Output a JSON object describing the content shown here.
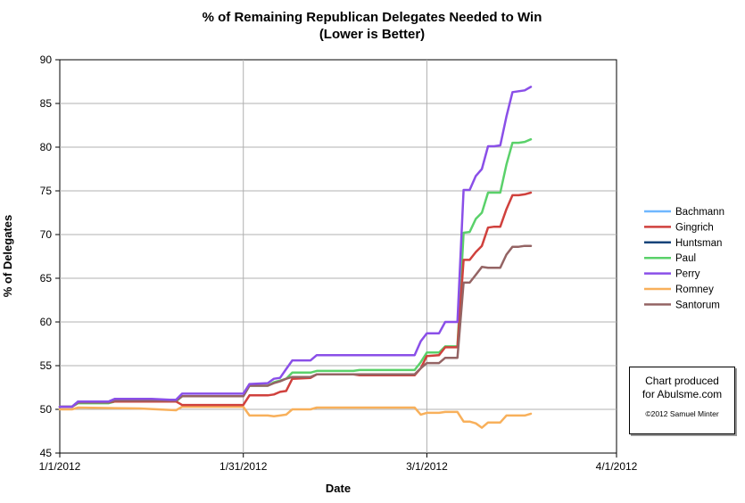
{
  "chart_data": {
    "type": "line",
    "title": "% of Remaining Republican Delegates Needed to Win",
    "subtitle": "(Lower is Better)",
    "xlabel": "Date",
    "ylabel": "% of Delegates",
    "xlim": [
      "2012-01-01",
      "2012-04-01"
    ],
    "ylim": [
      45,
      90
    ],
    "yticks": [
      45,
      50,
      55,
      60,
      65,
      70,
      75,
      80,
      85,
      90
    ],
    "xticks": [
      {
        "date": "2012-01-01",
        "label": "1/1/2012"
      },
      {
        "date": "2012-01-31",
        "label": "1/31/2012"
      },
      {
        "date": "2012-03-01",
        "label": "3/1/2012"
      },
      {
        "date": "2012-04-01",
        "label": "4/1/2012"
      }
    ],
    "grid": true,
    "legend_position": "right",
    "series": [
      {
        "name": "Bachmann",
        "color": "#6fb7ff",
        "points": [
          [
            "2012-01-01",
            50.3
          ],
          [
            "2012-01-03",
            50.3
          ],
          [
            "2012-01-04",
            50.9
          ],
          [
            "2012-01-05",
            50.9
          ]
        ]
      },
      {
        "name": "Gingrich",
        "color": "#d0413d",
        "points": [
          [
            "2012-01-01",
            50.3
          ],
          [
            "2012-01-03",
            50.3
          ],
          [
            "2012-01-04",
            50.8
          ],
          [
            "2012-01-09",
            50.8
          ],
          [
            "2012-01-10",
            50.9
          ],
          [
            "2012-01-20",
            50.9
          ],
          [
            "2012-01-21",
            50.5
          ],
          [
            "2012-01-31",
            50.5
          ],
          [
            "2012-02-01",
            51.6
          ],
          [
            "2012-02-04",
            51.6
          ],
          [
            "2012-02-05",
            51.7
          ],
          [
            "2012-02-06",
            52.0
          ],
          [
            "2012-02-07",
            52.1
          ],
          [
            "2012-02-08",
            53.5
          ],
          [
            "2012-02-11",
            53.6
          ],
          [
            "2012-02-12",
            54.0
          ],
          [
            "2012-02-18",
            54.0
          ],
          [
            "2012-02-19",
            53.9
          ],
          [
            "2012-02-28",
            53.9
          ],
          [
            "2012-02-29",
            54.7
          ],
          [
            "2012-03-01",
            56.1
          ],
          [
            "2012-03-03",
            56.2
          ],
          [
            "2012-03-04",
            57.1
          ],
          [
            "2012-03-06",
            57.1
          ],
          [
            "2012-03-07",
            67.1
          ],
          [
            "2012-03-08",
            67.1
          ],
          [
            "2012-03-09",
            68.0
          ],
          [
            "2012-03-10",
            68.7
          ],
          [
            "2012-03-11",
            70.8
          ],
          [
            "2012-03-12",
            70.9
          ],
          [
            "2012-03-13",
            70.9
          ],
          [
            "2012-03-14",
            72.9
          ],
          [
            "2012-03-15",
            74.5
          ],
          [
            "2012-03-16",
            74.5
          ],
          [
            "2012-03-17",
            74.6
          ],
          [
            "2012-03-18",
            74.8
          ]
        ]
      },
      {
        "name": "Huntsman",
        "color": "#17447a",
        "points": [
          [
            "2012-01-01",
            50.3
          ],
          [
            "2012-01-03",
            50.3
          ],
          [
            "2012-01-04",
            50.9
          ],
          [
            "2012-01-09",
            50.9
          ],
          [
            "2012-01-10",
            51.1
          ],
          [
            "2012-01-15",
            51.1
          ]
        ]
      },
      {
        "name": "Paul",
        "color": "#5ad16a",
        "points": [
          [
            "2012-01-01",
            50.3
          ],
          [
            "2012-01-03",
            50.3
          ],
          [
            "2012-01-04",
            50.7
          ],
          [
            "2012-01-09",
            50.7
          ],
          [
            "2012-01-10",
            50.9
          ],
          [
            "2012-01-20",
            50.9
          ],
          [
            "2012-01-21",
            51.5
          ],
          [
            "2012-01-31",
            51.5
          ],
          [
            "2012-02-01",
            52.7
          ],
          [
            "2012-02-04",
            52.7
          ],
          [
            "2012-02-05",
            53.1
          ],
          [
            "2012-02-06",
            53.3
          ],
          [
            "2012-02-07",
            53.5
          ],
          [
            "2012-02-08",
            54.2
          ],
          [
            "2012-02-11",
            54.2
          ],
          [
            "2012-02-12",
            54.4
          ],
          [
            "2012-02-18",
            54.4
          ],
          [
            "2012-02-19",
            54.5
          ],
          [
            "2012-02-28",
            54.5
          ],
          [
            "2012-02-29",
            55.4
          ],
          [
            "2012-03-01",
            56.5
          ],
          [
            "2012-03-03",
            56.5
          ],
          [
            "2012-03-04",
            57.2
          ],
          [
            "2012-03-06",
            57.2
          ],
          [
            "2012-03-07",
            70.2
          ],
          [
            "2012-03-08",
            70.3
          ],
          [
            "2012-03-09",
            71.8
          ],
          [
            "2012-03-10",
            72.5
          ],
          [
            "2012-03-11",
            74.8
          ],
          [
            "2012-03-12",
            74.8
          ],
          [
            "2012-03-13",
            74.8
          ],
          [
            "2012-03-14",
            78.0
          ],
          [
            "2012-03-15",
            80.5
          ],
          [
            "2012-03-16",
            80.5
          ],
          [
            "2012-03-17",
            80.6
          ],
          [
            "2012-03-18",
            80.9
          ]
        ]
      },
      {
        "name": "Perry",
        "color": "#8a4fe8",
        "points": [
          [
            "2012-01-01",
            50.3
          ],
          [
            "2012-01-03",
            50.3
          ],
          [
            "2012-01-04",
            50.9
          ],
          [
            "2012-01-09",
            50.9
          ],
          [
            "2012-01-10",
            51.2
          ],
          [
            "2012-01-16",
            51.2
          ],
          [
            "2012-01-19",
            51.1
          ],
          [
            "2012-01-20",
            51.1
          ],
          [
            "2012-01-21",
            51.8
          ],
          [
            "2012-01-31",
            51.8
          ],
          [
            "2012-02-01",
            52.9
          ],
          [
            "2012-02-04",
            53.0
          ],
          [
            "2012-02-05",
            53.5
          ],
          [
            "2012-02-06",
            53.6
          ],
          [
            "2012-02-07",
            54.6
          ],
          [
            "2012-02-08",
            55.6
          ],
          [
            "2012-02-11",
            55.6
          ],
          [
            "2012-02-12",
            56.2
          ],
          [
            "2012-02-28",
            56.2
          ],
          [
            "2012-02-29",
            57.8
          ],
          [
            "2012-03-01",
            58.7
          ],
          [
            "2012-03-03",
            58.7
          ],
          [
            "2012-03-04",
            60.0
          ],
          [
            "2012-03-06",
            60.0
          ],
          [
            "2012-03-07",
            75.1
          ],
          [
            "2012-03-08",
            75.1
          ],
          [
            "2012-03-09",
            76.7
          ],
          [
            "2012-03-10",
            77.5
          ],
          [
            "2012-03-11",
            80.1
          ],
          [
            "2012-03-12",
            80.1
          ],
          [
            "2012-03-13",
            80.2
          ],
          [
            "2012-03-14",
            83.5
          ],
          [
            "2012-03-15",
            86.3
          ],
          [
            "2012-03-16",
            86.4
          ],
          [
            "2012-03-17",
            86.5
          ],
          [
            "2012-03-18",
            86.9
          ]
        ]
      },
      {
        "name": "Romney",
        "color": "#f8b05b",
        "points": [
          [
            "2012-01-01",
            50.0
          ],
          [
            "2012-01-03",
            50.0
          ],
          [
            "2012-01-04",
            50.2
          ],
          [
            "2012-01-14",
            50.1
          ],
          [
            "2012-01-20",
            49.9
          ],
          [
            "2012-01-21",
            50.3
          ],
          [
            "2012-01-31",
            50.3
          ],
          [
            "2012-02-01",
            49.3
          ],
          [
            "2012-02-04",
            49.3
          ],
          [
            "2012-02-05",
            49.2
          ],
          [
            "2012-02-06",
            49.3
          ],
          [
            "2012-02-07",
            49.4
          ],
          [
            "2012-02-08",
            50.0
          ],
          [
            "2012-02-11",
            50.0
          ],
          [
            "2012-02-12",
            50.2
          ],
          [
            "2012-02-28",
            50.2
          ],
          [
            "2012-02-29",
            49.4
          ],
          [
            "2012-03-01",
            49.6
          ],
          [
            "2012-03-03",
            49.6
          ],
          [
            "2012-03-04",
            49.7
          ],
          [
            "2012-03-06",
            49.7
          ],
          [
            "2012-03-07",
            48.6
          ],
          [
            "2012-03-08",
            48.6
          ],
          [
            "2012-03-09",
            48.4
          ],
          [
            "2012-03-10",
            47.9
          ],
          [
            "2012-03-11",
            48.5
          ],
          [
            "2012-03-12",
            48.5
          ],
          [
            "2012-03-13",
            48.5
          ],
          [
            "2012-03-14",
            49.3
          ],
          [
            "2012-03-15",
            49.3
          ],
          [
            "2012-03-16",
            49.3
          ],
          [
            "2012-03-17",
            49.3
          ],
          [
            "2012-03-18",
            49.5
          ]
        ]
      },
      {
        "name": "Santorum",
        "color": "#946464",
        "points": [
          [
            "2012-01-01",
            50.3
          ],
          [
            "2012-01-03",
            50.3
          ],
          [
            "2012-01-04",
            50.8
          ],
          [
            "2012-01-09",
            50.8
          ],
          [
            "2012-01-10",
            51.0
          ],
          [
            "2012-01-20",
            51.0
          ],
          [
            "2012-01-21",
            51.5
          ],
          [
            "2012-01-31",
            51.5
          ],
          [
            "2012-02-01",
            52.7
          ],
          [
            "2012-02-04",
            52.7
          ],
          [
            "2012-02-05",
            53.0
          ],
          [
            "2012-02-06",
            53.2
          ],
          [
            "2012-02-07",
            53.5
          ],
          [
            "2012-02-08",
            53.7
          ],
          [
            "2012-02-11",
            53.7
          ],
          [
            "2012-02-12",
            54.0
          ],
          [
            "2012-02-28",
            54.0
          ],
          [
            "2012-02-29",
            54.7
          ],
          [
            "2012-03-01",
            55.3
          ],
          [
            "2012-03-03",
            55.3
          ],
          [
            "2012-03-04",
            55.9
          ],
          [
            "2012-03-06",
            55.9
          ],
          [
            "2012-03-07",
            64.5
          ],
          [
            "2012-03-08",
            64.5
          ],
          [
            "2012-03-09",
            65.4
          ],
          [
            "2012-03-10",
            66.3
          ],
          [
            "2012-03-11",
            66.2
          ],
          [
            "2012-03-12",
            66.2
          ],
          [
            "2012-03-13",
            66.2
          ],
          [
            "2012-03-14",
            67.7
          ],
          [
            "2012-03-15",
            68.6
          ],
          [
            "2012-03-16",
            68.6
          ],
          [
            "2012-03-17",
            68.7
          ],
          [
            "2012-03-18",
            68.7
          ]
        ]
      }
    ]
  },
  "credit": {
    "text": "Chart produced\nfor Abulsme.com",
    "copyright": "©2012 Samuel Minter"
  }
}
